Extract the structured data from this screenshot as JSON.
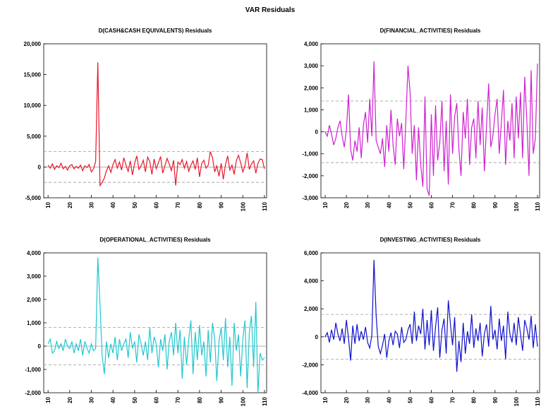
{
  "title": "VAR Residuals",
  "chart_data": [
    {
      "type": "line",
      "title": "D(CASH&CASH EQUIVALENTS) Residuals",
      "color": "#e8162a",
      "xlim": [
        8,
        111
      ],
      "xticks": [
        10,
        20,
        30,
        40,
        50,
        60,
        70,
        80,
        90,
        100,
        110
      ],
      "ylim": [
        -5000,
        20000
      ],
      "yticks": [
        {
          "value": -5000,
          "label": "-5,000"
        },
        0,
        {
          "value": 5000,
          "label": "5,000"
        },
        {
          "value": 10000,
          "label": "10,000"
        },
        {
          "value": 15000,
          "label": "15,000"
        },
        {
          "value": 20000,
          "label": "20,000"
        }
      ],
      "reference_lines": [
        -2500,
        0,
        2500
      ],
      "x": [
        10,
        11,
        12,
        13,
        14,
        15,
        16,
        17,
        18,
        19,
        20,
        21,
        22,
        23,
        24,
        25,
        26,
        27,
        28,
        29,
        30,
        31,
        32,
        33,
        34,
        35,
        36,
        37,
        38,
        39,
        40,
        41,
        42,
        43,
        44,
        45,
        46,
        47,
        48,
        49,
        50,
        51,
        52,
        53,
        54,
        55,
        56,
        57,
        58,
        59,
        60,
        61,
        62,
        63,
        64,
        65,
        66,
        67,
        68,
        69,
        70,
        71,
        72,
        73,
        74,
        75,
        76,
        77,
        78,
        79,
        80,
        81,
        82,
        83,
        84,
        85,
        86,
        87,
        88,
        89,
        90,
        91,
        92,
        93,
        94,
        95,
        96,
        97,
        98,
        99,
        100,
        101,
        102,
        103,
        104,
        105,
        106,
        107,
        108,
        109,
        110
      ],
      "values": [
        300,
        -200,
        500,
        -400,
        200,
        -100,
        600,
        -300,
        100,
        -500,
        200,
        400,
        -300,
        100,
        -200,
        300,
        -600,
        200,
        -100,
        400,
        -800,
        -300,
        900,
        17000,
        -3000,
        -2500,
        -1800,
        -600,
        200,
        -900,
        400,
        1200,
        -200,
        800,
        -500,
        1500,
        300,
        -700,
        1000,
        -1300,
        600,
        1800,
        -400,
        200,
        1100,
        -800,
        1600,
        900,
        -1200,
        1300,
        -300,
        700,
        1700,
        -1000,
        200,
        1400,
        500,
        -600,
        1100,
        -3000,
        800,
        400,
        1200,
        -200,
        900,
        -700,
        300,
        1000,
        -400,
        1500,
        -1600,
        600,
        1100,
        -200,
        300,
        2500,
        1500,
        -800,
        200,
        -1500,
        600,
        -2000,
        400,
        1800,
        -500,
        300,
        -1200,
        1000,
        1900,
        700,
        -800,
        200,
        2300,
        -400,
        500,
        1000,
        -1000,
        600,
        1300,
        1200,
        -300
      ]
    },
    {
      "type": "line",
      "title": "D(FINANCIAL_ACTIVITIES) Residuals",
      "color": "#d020d0",
      "xlim": [
        8,
        111
      ],
      "xticks": [
        10,
        20,
        30,
        40,
        50,
        60,
        70,
        80,
        90,
        100,
        110
      ],
      "ylim": [
        -3000,
        4000
      ],
      "yticks": [
        {
          "value": -3000,
          "label": "-3,000"
        },
        {
          "value": -2000,
          "label": "-2,000"
        },
        {
          "value": -1000,
          "label": "-1,000"
        },
        0,
        {
          "value": 1000,
          "label": "1,000"
        },
        {
          "value": 2000,
          "label": "2,000"
        },
        {
          "value": 3000,
          "label": "3,000"
        },
        {
          "value": 4000,
          "label": "4,000"
        }
      ],
      "reference_lines": [
        -1400,
        0,
        1400
      ],
      "x": [
        10,
        11,
        12,
        13,
        14,
        15,
        16,
        17,
        18,
        19,
        20,
        21,
        22,
        23,
        24,
        25,
        26,
        27,
        28,
        29,
        30,
        31,
        32,
        33,
        34,
        35,
        36,
        37,
        38,
        39,
        40,
        41,
        42,
        43,
        44,
        45,
        46,
        47,
        48,
        49,
        50,
        51,
        52,
        53,
        54,
        55,
        56,
        57,
        58,
        59,
        60,
        61,
        62,
        63,
        64,
        65,
        66,
        67,
        68,
        69,
        70,
        71,
        72,
        73,
        74,
        75,
        76,
        77,
        78,
        79,
        80,
        81,
        82,
        83,
        84,
        85,
        86,
        87,
        88,
        89,
        90,
        91,
        92,
        93,
        94,
        95,
        96,
        97,
        98,
        99,
        100,
        101,
        102,
        103,
        104,
        105,
        106,
        107,
        108,
        109,
        110
      ],
      "values": [
        0,
        -200,
        300,
        -100,
        -600,
        -300,
        200,
        500,
        -200,
        -700,
        100,
        1700,
        -800,
        -1300,
        -400,
        -900,
        200,
        -1200,
        300,
        900,
        -500,
        1500,
        -200,
        3200,
        -400,
        -700,
        -1000,
        -300,
        -1600,
        300,
        -900,
        1000,
        -600,
        -1500,
        600,
        -200,
        400,
        -1700,
        500,
        3000,
        1800,
        -1000,
        300,
        -2200,
        200,
        -1500,
        -2500,
        1600,
        -2600,
        -2900,
        800,
        -2000,
        1200,
        -1300,
        -500,
        1400,
        -1800,
        500,
        -2400,
        1700,
        -1000,
        700,
        1300,
        -800,
        -2000,
        900,
        -300,
        1500,
        -1500,
        200,
        600,
        -1200,
        1400,
        -600,
        1100,
        -1800,
        300,
        2200,
        -700,
        -200,
        800,
        1500,
        -1000,
        400,
        1900,
        -1500,
        500,
        -400,
        1300,
        -1200,
        1600,
        -300,
        1800,
        -1200,
        2500,
        500,
        -2000,
        2800,
        -1000,
        -300,
        3100
      ]
    },
    {
      "type": "line",
      "title": "D(OPERATIONAL_ACTIVITIES) Residuals",
      "color": "#20c8d0",
      "xlim": [
        8,
        111
      ],
      "xticks": [
        10,
        20,
        30,
        40,
        50,
        60,
        70,
        80,
        90,
        100,
        110
      ],
      "ylim": [
        -2000,
        4000
      ],
      "yticks": [
        {
          "value": -2000,
          "label": "-2,000"
        },
        {
          "value": -1000,
          "label": "-1,000"
        },
        0,
        {
          "value": 1000,
          "label": "1,000"
        },
        {
          "value": 2000,
          "label": "2,000"
        },
        {
          "value": 3000,
          "label": "3,000"
        },
        {
          "value": 4000,
          "label": "4,000"
        }
      ],
      "reference_lines": [
        -800,
        0,
        800
      ],
      "x": [
        10,
        11,
        12,
        13,
        14,
        15,
        16,
        17,
        18,
        19,
        20,
        21,
        22,
        23,
        24,
        25,
        26,
        27,
        28,
        29,
        30,
        31,
        32,
        33,
        34,
        35,
        36,
        37,
        38,
        39,
        40,
        41,
        42,
        43,
        44,
        45,
        46,
        47,
        48,
        49,
        50,
        51,
        52,
        53,
        54,
        55,
        56,
        57,
        58,
        59,
        60,
        61,
        62,
        63,
        64,
        65,
        66,
        67,
        68,
        69,
        70,
        71,
        72,
        73,
        74,
        75,
        76,
        77,
        78,
        79,
        80,
        81,
        82,
        83,
        84,
        85,
        86,
        87,
        88,
        89,
        90,
        91,
        92,
        93,
        94,
        95,
        96,
        97,
        98,
        99,
        100,
        101,
        102,
        103,
        104,
        105,
        106,
        107,
        108,
        109,
        110
      ],
      "values": [
        100,
        300,
        -300,
        -200,
        200,
        -100,
        100,
        -200,
        300,
        0,
        -100,
        200,
        -300,
        100,
        -200,
        300,
        -400,
        200,
        -100,
        -300,
        100,
        -200,
        -100,
        3800,
        1800,
        -400,
        -1200,
        200,
        -500,
        100,
        -300,
        400,
        -600,
        300,
        -200,
        100,
        300,
        -500,
        600,
        -100,
        200,
        -700,
        500,
        100,
        -400,
        200,
        -600,
        800,
        -300,
        400,
        100,
        -900,
        300,
        -200,
        500,
        -1000,
        200,
        600,
        -400,
        1000,
        -300,
        700,
        -1400,
        400,
        -800,
        300,
        1100,
        -1200,
        600,
        -600,
        900,
        -400,
        200,
        -1300,
        700,
        -700,
        1000,
        300,
        -1500,
        200,
        800,
        -600,
        1200,
        -900,
        400,
        -1700,
        1000,
        -200,
        500,
        -1300,
        300,
        1100,
        -1800,
        600,
        1300,
        -900,
        1900,
        -2000,
        -300,
        -600,
        -500
      ]
    },
    {
      "type": "line",
      "title": "D(INVESTING_ACTIVITIES) Residuals",
      "color": "#1010d0",
      "xlim": [
        8,
        111
      ],
      "xticks": [
        10,
        20,
        30,
        40,
        50,
        60,
        70,
        80,
        90,
        100,
        110
      ],
      "ylim": [
        -4000,
        6000
      ],
      "yticks": [
        {
          "value": -4000,
          "label": "-4,000"
        },
        {
          "value": -2000,
          "label": "-2,000"
        },
        0,
        {
          "value": 2000,
          "label": "2,000"
        },
        {
          "value": 4000,
          "label": "4,000"
        },
        {
          "value": 6000,
          "label": "6,000"
        }
      ],
      "reference_lines": [
        -1600,
        0,
        1600
      ],
      "x": [
        10,
        11,
        12,
        13,
        14,
        15,
        16,
        17,
        18,
        19,
        20,
        21,
        22,
        23,
        24,
        25,
        26,
        27,
        28,
        29,
        30,
        31,
        32,
        33,
        34,
        35,
        36,
        37,
        38,
        39,
        40,
        41,
        42,
        43,
        44,
        45,
        46,
        47,
        48,
        49,
        50,
        51,
        52,
        53,
        54,
        55,
        56,
        57,
        58,
        59,
        60,
        61,
        62,
        63,
        64,
        65,
        66,
        67,
        68,
        69,
        70,
        71,
        72,
        73,
        74,
        75,
        76,
        77,
        78,
        79,
        80,
        81,
        82,
        83,
        84,
        85,
        86,
        87,
        88,
        89,
        90,
        91,
        92,
        93,
        94,
        95,
        96,
        97,
        98,
        99,
        100,
        101,
        102,
        103,
        104,
        105,
        106,
        107,
        108,
        109,
        110
      ],
      "values": [
        0,
        300,
        -400,
        500,
        -200,
        1000,
        200,
        -300,
        600,
        -500,
        1200,
        -100,
        -1700,
        800,
        -500,
        900,
        -300,
        400,
        -200,
        700,
        -400,
        -800,
        100,
        5500,
        1500,
        -700,
        -1200,
        -600,
        200,
        -1500,
        -300,
        300,
        -600,
        400,
        200,
        -800,
        700,
        -400,
        -200,
        500,
        900,
        -500,
        1800,
        -300,
        800,
        200,
        2000,
        -900,
        1200,
        -600,
        1900,
        -1000,
        700,
        2100,
        -1500,
        500,
        1300,
        -1200,
        2600,
        900,
        -600,
        1400,
        -2500,
        -300,
        -1800,
        1000,
        -1200,
        400,
        -500,
        1600,
        -800,
        600,
        -300,
        1000,
        -1400,
        200,
        900,
        -700,
        2200,
        -200,
        500,
        -900,
        1300,
        -300,
        800,
        -1600,
        1800,
        200,
        -400,
        1000,
        -600,
        1400,
        200,
        -1000,
        1200,
        600,
        -200,
        1500,
        -800,
        900,
        -700
      ]
    }
  ]
}
